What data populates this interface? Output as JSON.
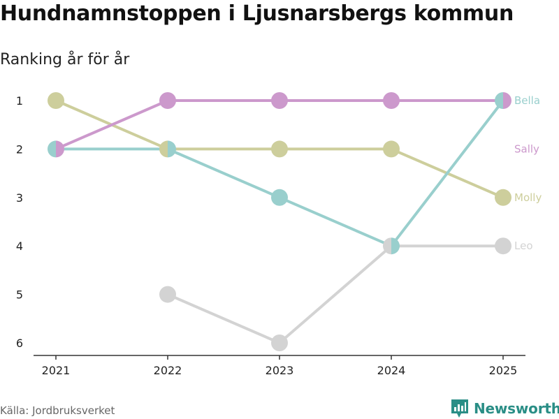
{
  "header": {
    "title": "Hundnamnstoppen i Ljusnarsbergs kommun",
    "subtitle": "Ranking år för år"
  },
  "footer": {
    "source": "Källa: Jordbruksverket",
    "brand": "Newsworthy",
    "brand_icon": "bar-chart-logo-icon",
    "brand_color": "#2a8e86"
  },
  "chart_data": {
    "type": "line",
    "title": "Hundnamnstoppen i Ljusnarsbergs kommun",
    "subtitle": "Ranking år för år",
    "xlabel": "",
    "ylabel": "",
    "x": [
      "2021",
      "2022",
      "2023",
      "2024",
      "2025"
    ],
    "ylim": [
      1,
      6
    ],
    "y_inverted": true,
    "y_ticks": [
      "1",
      "2",
      "3",
      "4",
      "5",
      "6"
    ],
    "grid": false,
    "series": [
      {
        "name": "Leo",
        "color": "#d3d3d3",
        "values": [
          null,
          5,
          6,
          4,
          4
        ]
      },
      {
        "name": "Molly",
        "color": "#cdce9c",
        "values": [
          1,
          2,
          2,
          2,
          3
        ]
      },
      {
        "name": "Bella",
        "color": "#99cfcd",
        "values": [
          2,
          2,
          3,
          4,
          1
        ]
      },
      {
        "name": "Sally",
        "color": "#cc99cc",
        "values": [
          2,
          1,
          1,
          1,
          1
        ]
      }
    ],
    "labels": [
      {
        "name": "Bella",
        "color": "#99cfcd",
        "rank": 1
      },
      {
        "name": "Sally",
        "color": "#cc99cc",
        "rank": 2
      },
      {
        "name": "Molly",
        "color": "#cdce9c",
        "rank": 3
      },
      {
        "name": "Leo",
        "color": "#d3d3d3",
        "rank": 4
      }
    ]
  }
}
